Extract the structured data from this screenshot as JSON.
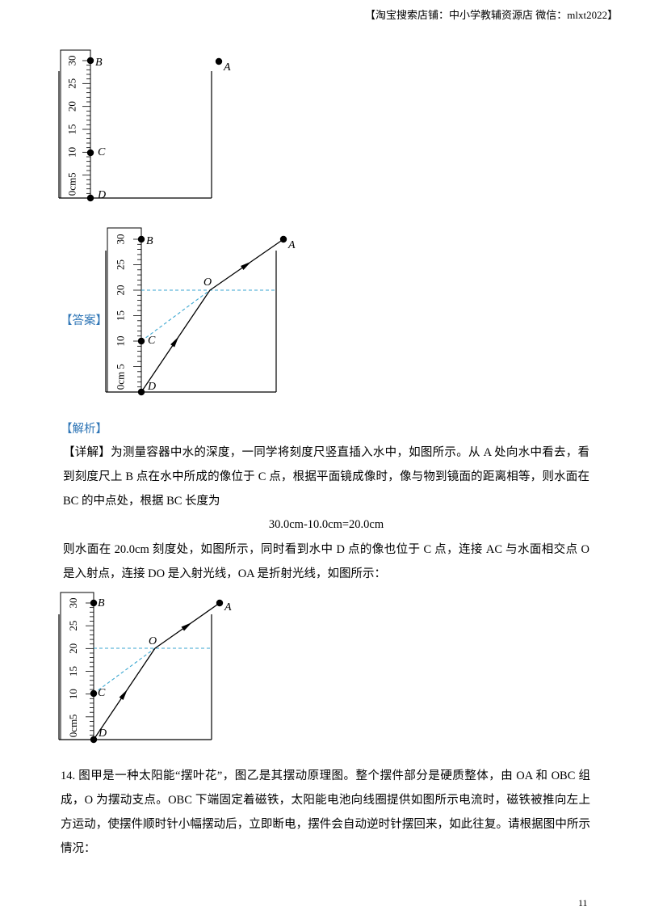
{
  "header": {
    "text": "【淘宝搜索店铺：中小学教辅资源店  微信：mlxt2022】"
  },
  "figures": [
    {
      "ruler_labels": [
        "0cm",
        "5",
        "10",
        "15",
        "20",
        "25",
        "30"
      ],
      "point_labels": [
        "A",
        "B",
        "C",
        "D"
      ]
    },
    {
      "ruler_labels": [
        "0cm",
        "5",
        "10",
        "15",
        "20",
        "25",
        "30"
      ],
      "point_labels": [
        "A",
        "B",
        "C",
        "D",
        "O"
      ]
    },
    {
      "ruler_labels": [
        "0cm",
        "5",
        "10",
        "15",
        "20",
        "25",
        "30"
      ],
      "point_labels": [
        "A",
        "B",
        "C",
        "D",
        "O"
      ]
    }
  ],
  "answer_label": "【答案】",
  "analysis_label": "【解析】",
  "detail_label": "【详解】",
  "paragraphs": [
    "为测量容器中水的深度，一同学将刻度尺竖直插入水中，如图所示。从 A 处向水中看去，看到刻度尺上 B 点在水中所成的像位于 C 点，根据平面镜成像时，像与物到镜面的距离相等，则水面在 BC 的中点处，根据 BC 长度为",
    "30.0cm-10.0cm=20.0cm",
    "则水面在 20.0cm 刻度处，如图所示，同时看到水中 D 点的像也位于 C 点，连接 AC 与水面相交点 O 是入射点，连接 DO 是入射光线，OA 是折射光线，如图所示：",
    "14. 图甲是一种太阳能“摆叶花”，图乙是其摆动原理图。整个摆件部分是硬质整体，由 OA 和 OBC 组成，O 为摆动支点。OBC 下端固定着磁铁，太阳能电池向线圈提供如图所示电流时，磁铁被推向左上方运动，使摆件顺时针小幅摆动后，立即断电，摆件会自动逆时针摆回来，如此往复。请根据图中所示情况："
  ],
  "page_number": "11"
}
